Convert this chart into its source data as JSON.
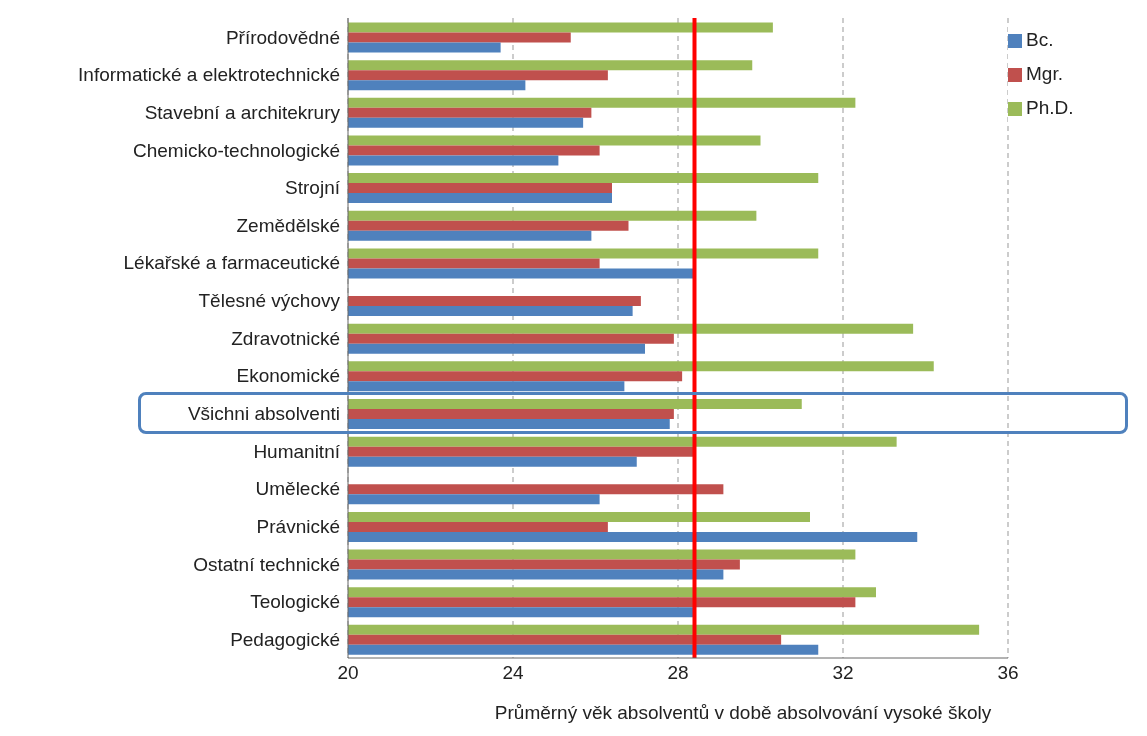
{
  "chart_data": {
    "type": "bar",
    "orientation": "horizontal",
    "xlabel": "Průměrný věk absolventů  v době absolvování  vysoké školy",
    "categories": [
      "Přírodovědné",
      "Informatické a elektrotechnické",
      "Stavební a architekrury",
      "Chemicko-technologické",
      "Strojní",
      "Zemědělské",
      "Lékařské a farmaceutické",
      "Tělesné výchovy",
      "Zdravotnické",
      "Ekonomické",
      "Všichni absolventi",
      "Humanitní",
      "Umělecké",
      "Právnické",
      "Ostatní technické",
      "Teologické",
      "Pedagogické"
    ],
    "series": [
      {
        "name": "Ph.D.",
        "color": "#9bbb59",
        "values": [
          30.3,
          29.8,
          32.3,
          30.0,
          31.4,
          29.9,
          31.4,
          null,
          33.7,
          34.2,
          31.0,
          33.3,
          null,
          31.2,
          32.3,
          32.8,
          35.3
        ]
      },
      {
        "name": "Mgr.",
        "color": "#c0504d",
        "values": [
          25.4,
          26.3,
          25.9,
          26.1,
          26.4,
          26.8,
          26.1,
          27.1,
          27.9,
          28.1,
          27.9,
          28.4,
          29.1,
          26.3,
          29.5,
          32.3,
          30.5
        ]
      },
      {
        "name": "Bc.",
        "color": "#4f81bd",
        "values": [
          23.7,
          24.3,
          25.7,
          25.1,
          26.4,
          25.9,
          28.4,
          26.9,
          27.2,
          26.7,
          27.8,
          27.0,
          26.1,
          33.8,
          29.1,
          28.4,
          31.4
        ]
      }
    ],
    "xlim": [
      20,
      36
    ],
    "xticks": [
      20,
      24,
      28,
      32,
      36
    ],
    "grid": "x",
    "legend": "top right",
    "ref_lines": [
      {
        "axis": "x",
        "value": 28.4,
        "color": "#ff0000"
      }
    ]
  }
}
